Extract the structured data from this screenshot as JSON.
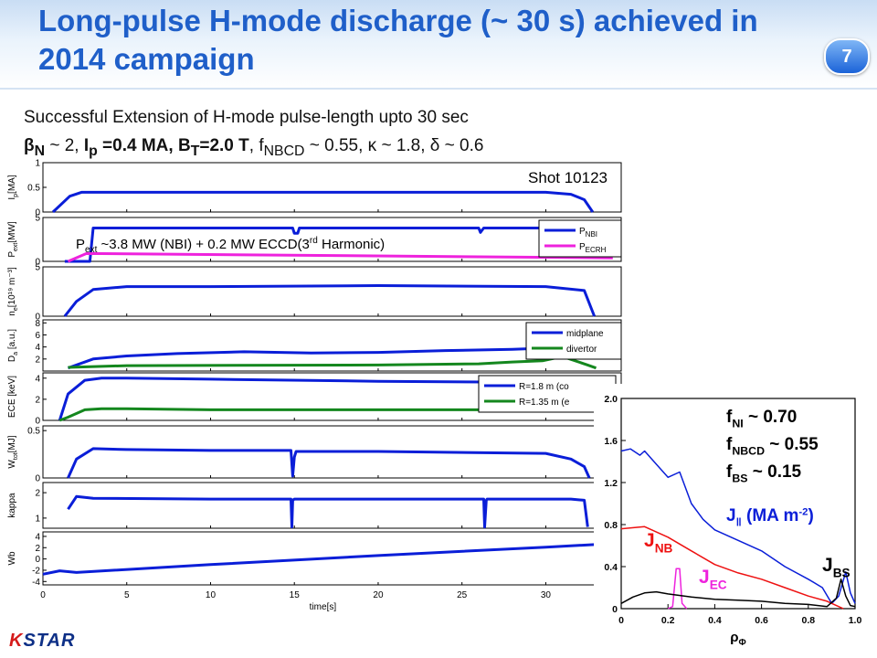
{
  "slide": {
    "title": "Long-pulse H-mode discharge (~ 30 s) achieved in 2014 campaign",
    "page_number": "7",
    "subtitle": "Successful Extension of H-mode pulse-length upto 30 sec",
    "params": {
      "beta": "β",
      "beta_sub": "N",
      "beta_val": " ~ 2, ",
      "ip": "I",
      "ip_sub": "p",
      "ip_val": " =0.4 MA, B",
      "bt_sub": "T",
      "bt_val": "=2.0 T",
      "rest": ", f",
      "fnbcd_sub": "NBCD",
      "rest2": " ~ 0.55, κ ~ 1.8, δ ~ 0.6"
    },
    "logo": {
      "k": "K",
      "star": "STAR"
    }
  },
  "colors": {
    "title": "#1f5fc9",
    "blue": "#0a1ed8",
    "magenta": "#ee22dd",
    "green": "#14871e",
    "red": "#ee1111",
    "black": "#000000"
  },
  "chart_data": [
    {
      "type": "line",
      "time_axis": {
        "label": "time[s]",
        "ticks": [
          0,
          5,
          10,
          15,
          20,
          25,
          30
        ],
        "range": [
          0,
          34.5
        ]
      },
      "shot_label": "Shot 10123",
      "annotation": {
        "main": "P",
        "sub": "ext",
        "text": " ~3.8 MW (NBI) + 0.2 MW ECCD(3",
        "sup": "rd",
        "tail": " Harmonic)"
      },
      "panels": [
        {
          "ylabel": "I",
          "ylabel_sub": "p",
          "ylabel_unit": "[MA]",
          "yticks": [
            "1",
            "0.5",
            "0"
          ],
          "ylim": [
            0,
            1
          ],
          "series": [
            {
              "color": "blue",
              "x": [
                0.6,
                1.6,
                2.3,
                5,
                30,
                31.5,
                32.3,
                32.8
              ],
              "y": [
                0,
                0.32,
                0.4,
                0.4,
                0.4,
                0.36,
                0.25,
                0
              ]
            }
          ]
        },
        {
          "ylabel": "P",
          "ylabel_sub": "ext",
          "ylabel_unit": "[MW]",
          "yticks": [
            "5",
            "0"
          ],
          "ylim": [
            0,
            5
          ],
          "legend": [
            {
              "label": "P",
              "label_sub": "NBI",
              "color": "blue"
            },
            {
              "label": "P",
              "label_sub": "ECRH",
              "color": "magenta"
            }
          ],
          "series": [
            {
              "color": "blue",
              "x": [
                1.3,
                2.8,
                3,
                14.9,
                15,
                15.2,
                15.3,
                26,
                26.1,
                26.3,
                33
              ],
              "y": [
                0,
                0,
                3.8,
                3.8,
                3.2,
                3.2,
                3.8,
                3.8,
                3.3,
                3.8,
                3.8
              ]
            },
            {
              "color": "magenta",
              "x": [
                1.5,
                2.6,
                34
              ],
              "y": [
                0,
                0.9,
                0.4
              ]
            }
          ]
        },
        {
          "ylabel": "n",
          "ylabel_sub": "e",
          "ylabel_unit": "[10¹⁹ m⁻³]",
          "yticks": [
            "5",
            "0"
          ],
          "ylim": [
            0,
            5
          ],
          "series": [
            {
              "color": "blue",
              "x": [
                1.3,
                2,
                3,
                5,
                10,
                20,
                30,
                32.3,
                32.9
              ],
              "y": [
                0,
                1.5,
                2.7,
                3.0,
                3.0,
                3.1,
                3.0,
                2.6,
                0
              ]
            }
          ]
        },
        {
          "ylabel": "D",
          "ylabel_sub": "a",
          "ylabel_unit": " [a.u.]",
          "yticks": [
            "8",
            "6",
            "4",
            "2"
          ],
          "ylim": [
            0,
            8.5
          ],
          "legend": [
            {
              "label": "midplane",
              "color": "blue"
            },
            {
              "label": "divertor",
              "color": "green"
            }
          ],
          "series": [
            {
              "color": "blue",
              "x": [
                1.5,
                3,
                5,
                8,
                12,
                16,
                20,
                24,
                28,
                31,
                32.5
              ],
              "y": [
                0.5,
                2.0,
                2.5,
                2.9,
                3.2,
                3.0,
                3.1,
                3.4,
                3.6,
                3.9,
                4.2
              ]
            },
            {
              "color": "green",
              "x": [
                1.5,
                5,
                20,
                26,
                28,
                29.8,
                31,
                32.5,
                33
              ],
              "y": [
                0.6,
                0.9,
                1.0,
                1.2,
                1.5,
                1.7,
                2.4,
                1.0,
                0.5
              ]
            }
          ]
        },
        {
          "ylabel": "ECE [keV]",
          "ylabel_sub": "",
          "ylabel_unit": "",
          "yticks": [
            "4",
            "2",
            "0"
          ],
          "ylim": [
            0,
            4.5
          ],
          "legend": [
            {
              "label": "R=1.8 m (co",
              "color": "blue"
            },
            {
              "label": "R=1.35 m (e",
              "color": "green"
            }
          ],
          "series": [
            {
              "color": "blue",
              "x": [
                1.0,
                1.5,
                2.5,
                3.5,
                5,
                10,
                20,
                30,
                30.3
              ],
              "y": [
                0,
                2.5,
                3.8,
                4.0,
                4.0,
                3.9,
                3.7,
                3.6,
                3.6
              ]
            },
            {
              "color": "green",
              "x": [
                1.0,
                1.5,
                2.5,
                3.5,
                5,
                10,
                20,
                30,
                30.3
              ],
              "y": [
                0,
                0.3,
                1.0,
                1.1,
                1.1,
                1.0,
                1.0,
                1.0,
                1.0
              ]
            }
          ]
        },
        {
          "ylabel": "W",
          "ylabel_sub": "tot",
          "ylabel_unit": "[MJ]",
          "yticks": [
            "0.5",
            "0"
          ],
          "ylim": [
            0,
            0.55
          ],
          "series": [
            {
              "color": "blue",
              "x": [
                1.5,
                2,
                3,
                5,
                10,
                14.8,
                14.9,
                15,
                15.1,
                20,
                30,
                31.5,
                32.3,
                32.6
              ],
              "y": [
                0,
                0.2,
                0.31,
                0.3,
                0.29,
                0.29,
                0.02,
                0.22,
                0.28,
                0.28,
                0.26,
                0.2,
                0.12,
                0
              ]
            }
          ]
        },
        {
          "ylabel": "kappa",
          "ylabel_sub": "",
          "ylabel_unit": "",
          "yticks": [
            "2",
            "1"
          ],
          "ylim": [
            0.6,
            2.4
          ],
          "series": [
            {
              "color": "blue",
              "x": [
                1.5,
                2,
                3,
                10,
                14.8,
                14.85,
                14.9,
                15,
                20,
                26.3,
                26.35,
                26.45,
                26.5,
                30,
                31.5,
                32.3,
                32.5
              ],
              "y": [
                1.35,
                1.85,
                1.78,
                1.75,
                1.75,
                0.65,
                1.7,
                1.75,
                1.75,
                1.75,
                0.65,
                1.7,
                1.75,
                1.75,
                1.75,
                1.7,
                0.65
              ]
            }
          ]
        },
        {
          "ylabel": "Wb",
          "ylabel_sub": "",
          "ylabel_unit": "",
          "yticks": [
            "4",
            "2",
            "0",
            "-2",
            "-4"
          ],
          "ylim": [
            -4.6,
            4.8
          ],
          "series": [
            {
              "color": "blue",
              "x": [
                0,
                1,
                2,
                10,
                20,
                30,
                34.5
              ],
              "y": [
                -2.7,
                -2.1,
                -2.4,
                -1.0,
                0.6,
                2.1,
                2.8
              ]
            }
          ]
        }
      ]
    },
    {
      "type": "line",
      "xlabel": "ρ",
      "xlabel_sub": "Φ",
      "xticks": [
        "0",
        "0.2",
        "0.4",
        "0.6",
        "0.8",
        "1.0"
      ],
      "xlim": [
        0,
        1
      ],
      "yticks": [
        "2.0",
        "1.6",
        "1.2",
        "0.8",
        "0.4",
        "0"
      ],
      "ylim": [
        0,
        2
      ],
      "labels": {
        "fni": {
          "main": "f",
          "sub": "NI",
          "text": " ~ 0.70"
        },
        "fnbcd": {
          "main": "f",
          "sub": "NBCD",
          "text": " ~ 0.55"
        },
        "fbs": {
          "main": "f",
          "sub": "BS",
          "text": " ~ 0.15"
        },
        "jpar": {
          "main": "J",
          "sub": "‖",
          "text": " (MA m",
          "sup": "-2",
          "tail": ")"
        },
        "jnb": {
          "main": "J",
          "sub": "NB"
        },
        "jec": {
          "main": "J",
          "sub": "EC"
        },
        "jbs": {
          "main": "J",
          "sub": "BS"
        }
      },
      "series": [
        {
          "color": "blue",
          "x": [
            0,
            0.04,
            0.08,
            0.1,
            0.14,
            0.2,
            0.25,
            0.3,
            0.35,
            0.4,
            0.5,
            0.6,
            0.7,
            0.8,
            0.86,
            0.9,
            0.93,
            0.96,
            0.98,
            1.0
          ],
          "y": [
            1.5,
            1.52,
            1.46,
            1.5,
            1.4,
            1.25,
            1.3,
            1.0,
            0.85,
            0.75,
            0.65,
            0.55,
            0.4,
            0.28,
            0.2,
            0.05,
            0.12,
            0.35,
            0.15,
            0.05
          ]
        },
        {
          "color": "red",
          "x": [
            0,
            0.1,
            0.2,
            0.3,
            0.4,
            0.5,
            0.6,
            0.7,
            0.8,
            0.88,
            0.92,
            0.95
          ],
          "y": [
            0.76,
            0.78,
            0.68,
            0.55,
            0.42,
            0.34,
            0.28,
            0.2,
            0.12,
            0.07,
            0.03,
            0
          ]
        },
        {
          "color": "magenta",
          "x": [
            0.2,
            0.22,
            0.235,
            0.25,
            0.26,
            0.28
          ],
          "y": [
            0,
            0.02,
            0.38,
            0.38,
            0.05,
            0
          ]
        },
        {
          "color": "black",
          "x": [
            0,
            0.05,
            0.1,
            0.15,
            0.2,
            0.3,
            0.4,
            0.5,
            0.6,
            0.7,
            0.8,
            0.88,
            0.92,
            0.94,
            0.96,
            0.98,
            1.0
          ],
          "y": [
            0.05,
            0.11,
            0.15,
            0.16,
            0.14,
            0.11,
            0.09,
            0.08,
            0.07,
            0.05,
            0.04,
            0.02,
            0.1,
            0.28,
            0.12,
            0.03,
            0.02
          ]
        }
      ]
    }
  ]
}
